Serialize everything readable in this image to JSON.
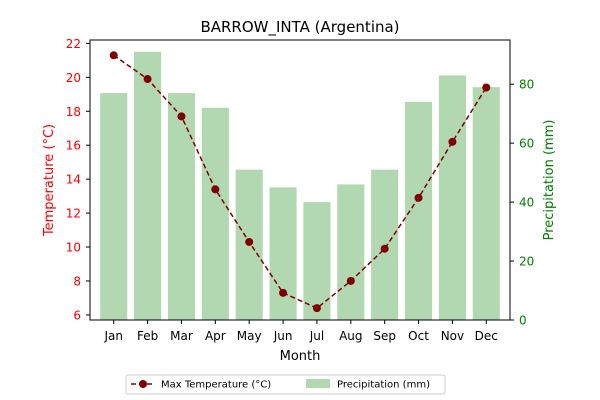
{
  "chart_data": {
    "type": "bar+line",
    "title": "BARROW_INTA (Argentina)",
    "xlabel": "Month",
    "categories": [
      "Jan",
      "Feb",
      "Mar",
      "Apr",
      "May",
      "Jun",
      "Jul",
      "Aug",
      "Sep",
      "Oct",
      "Nov",
      "Dec"
    ],
    "y_left": {
      "label": "Temperature (°C)",
      "color": "#ff0000",
      "ticks": [
        6,
        8,
        10,
        12,
        14,
        16,
        18,
        20,
        22
      ],
      "range": [
        5.7,
        22.2
      ]
    },
    "y_right": {
      "label": "Precipitation (mm)",
      "color": "#008000",
      "ticks": [
        0,
        20,
        40,
        60,
        80
      ],
      "range": [
        0,
        95
      ]
    },
    "series": [
      {
        "name": "Max Temperature (°C)",
        "type": "line",
        "axis": "left",
        "color": "#800000",
        "linestyle": "dashed",
        "marker": "circle",
        "values": [
          21.3,
          19.9,
          17.7,
          13.4,
          10.3,
          7.3,
          6.4,
          8.0,
          9.9,
          12.9,
          16.2,
          19.4
        ]
      },
      {
        "name": "Precipitation (mm)",
        "type": "bar",
        "axis": "right",
        "color": "#b2d8b2",
        "values": [
          77,
          91,
          77,
          72,
          51,
          45,
          40,
          46,
          51,
          74,
          83,
          79
        ]
      }
    ],
    "legend": {
      "position": "bottom-center",
      "columns": 2
    },
    "grid": false
  }
}
